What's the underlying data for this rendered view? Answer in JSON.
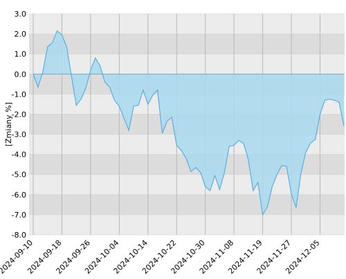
{
  "chart_data": {
    "type": "area",
    "y_label": "[Zmiany %]",
    "categories": [
      "2024-09-10",
      null,
      null,
      null,
      null,
      null,
      "2024-09-18",
      null,
      null,
      null,
      null,
      null,
      "2024-09-26",
      null,
      null,
      null,
      null,
      null,
      "2024-10-04",
      null,
      null,
      null,
      null,
      null,
      "2024-10-14",
      null,
      null,
      null,
      null,
      null,
      "2024-10-22",
      null,
      null,
      null,
      null,
      null,
      "2024-10-30",
      null,
      null,
      null,
      null,
      null,
      "2024-11-08",
      null,
      null,
      null,
      null,
      null,
      "2024-11-19",
      null,
      null,
      null,
      null,
      null,
      "2024-11-27",
      null,
      null,
      null,
      null,
      null,
      "2024-12-05",
      null,
      null,
      null,
      null,
      null
    ],
    "values": [
      0.0,
      -0.65,
      0.1,
      1.35,
      1.55,
      2.15,
      1.95,
      1.35,
      -0.1,
      -1.55,
      -1.25,
      -0.7,
      0.2,
      0.8,
      0.4,
      -0.4,
      -0.65,
      -1.3,
      -1.6,
      -2.2,
      -2.8,
      -1.6,
      -1.55,
      -0.8,
      -1.5,
      -1.05,
      -0.8,
      -2.95,
      -2.35,
      -2.15,
      -3.55,
      -3.8,
      -4.2,
      -4.85,
      -4.65,
      -4.9,
      -5.6,
      -5.8,
      -5.05,
      -5.75,
      -4.9,
      -3.6,
      -3.55,
      -3.3,
      -3.45,
      -4.25,
      -5.8,
      -5.4,
      -7.0,
      -6.6,
      -5.6,
      -5.0,
      -4.55,
      -4.6,
      -5.95,
      -6.65,
      -4.95,
      -3.9,
      -3.45,
      -3.25,
      -2.0,
      -1.3,
      -1.25,
      -1.3,
      -1.4,
      -2.6
    ],
    "color": "#5aaee0",
    "fill": "#a9d9f0",
    "ylim": [
      -8,
      3
    ],
    "yticks": [
      {
        "value": 3,
        "label": "3.0"
      },
      {
        "value": 2,
        "label": "2.0"
      },
      {
        "value": 1,
        "label": "1.0"
      },
      {
        "value": 0,
        "label": "0.0"
      },
      {
        "value": -1,
        "label": "-1.0"
      },
      {
        "value": -2,
        "label": "-2.0"
      },
      {
        "value": -3,
        "label": "-3.0"
      },
      {
        "value": -4,
        "label": "-4.0"
      },
      {
        "value": -5,
        "label": "-5.0"
      },
      {
        "value": -6,
        "label": "-6.0"
      },
      {
        "value": -7,
        "label": "-7.0"
      },
      {
        "value": -8,
        "label": "-8.0"
      }
    ],
    "grid": true
  }
}
